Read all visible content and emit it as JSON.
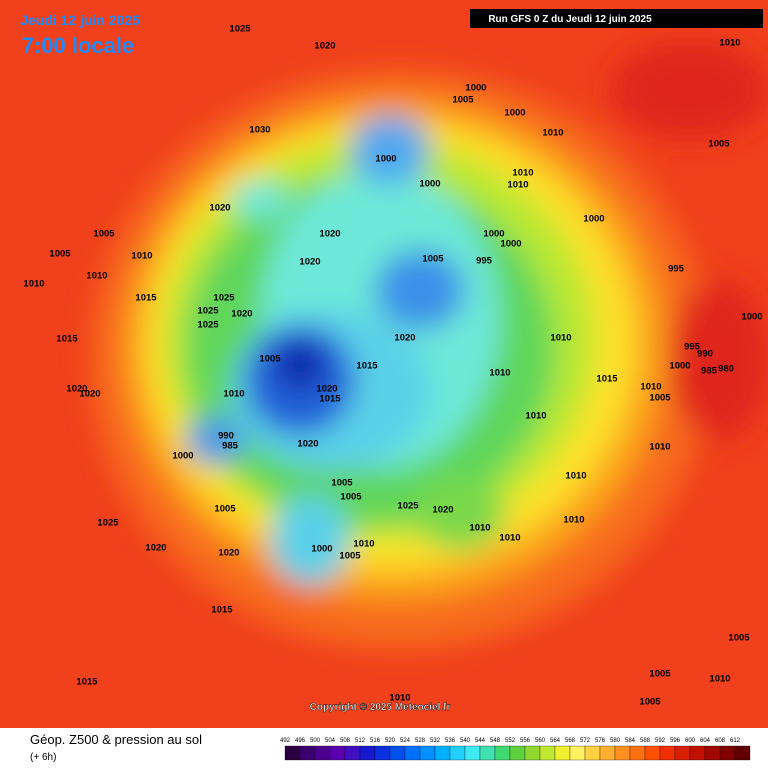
{
  "header": {
    "date": "Jeudi 12 juin 2025",
    "time": "7:00 locale",
    "run": "Run GFS 0 Z du Jeudi 12 juin 2025"
  },
  "copyright": "Copyright © 2025 Meteociel.fr",
  "legend": {
    "title": "Géop. Z500 & pression au sol",
    "lead": "(+ 6h)",
    "scale": [
      492,
      496,
      500,
      504,
      508,
      512,
      516,
      520,
      524,
      528,
      532,
      536,
      540,
      544,
      548,
      552,
      556,
      560,
      564,
      568,
      572,
      576,
      580,
      584,
      588,
      592,
      596,
      600,
      604,
      608,
      612
    ]
  },
  "pressure_labels": [
    "1025",
    "1020",
    "1010",
    "1000",
    "1005",
    "1000",
    "1030",
    "1010",
    "1005",
    "1000",
    "1010",
    "1010",
    "1000",
    "1020",
    "1000",
    "1020",
    "1005",
    "1000",
    "1000",
    "1005",
    "1010",
    "1005",
    "995",
    "1020",
    "995",
    "1010",
    "1010",
    "1015",
    "1025",
    "1025",
    "1020",
    "1025",
    "1000",
    "1015",
    "1020",
    "1010",
    "995",
    "990",
    "1005",
    "1015",
    "1000",
    "985",
    "980",
    "1010",
    "1015",
    "1020",
    "1015",
    "1010",
    "1005",
    "1020",
    "1020",
    "1010",
    "990",
    "985",
    "1020",
    "1010",
    "1010",
    "1000",
    "1005",
    "1005",
    "1010",
    "1025",
    "1020",
    "1005",
    "1010",
    "1010",
    "1010",
    "1025",
    "1010",
    "1020",
    "1000",
    "1005",
    "1020",
    "1015",
    "1005",
    "1005",
    "1010",
    "1015",
    "1010",
    "1005"
  ]
}
